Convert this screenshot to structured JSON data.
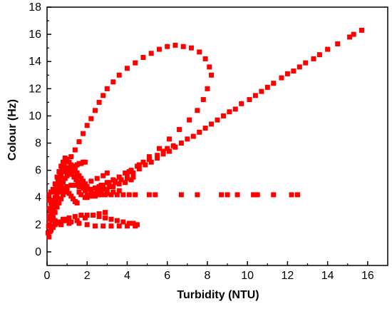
{
  "chart_data": {
    "type": "scatter",
    "xlabel": "Turbidity (NTU)",
    "ylabel": "Colour (Hz)",
    "xlim": [
      0,
      17
    ],
    "ylim": [
      -1,
      18
    ],
    "xticks": [
      0,
      2,
      4,
      6,
      8,
      10,
      12,
      14,
      16
    ],
    "yticks": [
      0,
      2,
      4,
      6,
      8,
      10,
      12,
      14,
      16,
      18
    ],
    "marker": "square",
    "color": "#ff0000",
    "grid": false,
    "legend": "none",
    "points": [
      [
        15.7,
        16.3
      ],
      [
        15.3,
        16.0
      ],
      [
        15.1,
        15.8
      ],
      [
        14.5,
        15.3
      ],
      [
        14.0,
        14.9
      ],
      [
        13.6,
        14.5
      ],
      [
        13.3,
        14.2
      ],
      [
        12.9,
        13.9
      ],
      [
        12.6,
        13.6
      ],
      [
        12.3,
        13.3
      ],
      [
        12.0,
        13.1
      ],
      [
        11.7,
        12.8
      ],
      [
        11.3,
        12.4
      ],
      [
        11.0,
        12.1
      ],
      [
        10.7,
        11.8
      ],
      [
        10.4,
        11.5
      ],
      [
        10.1,
        11.2
      ],
      [
        9.7,
        10.9
      ],
      [
        9.4,
        10.5
      ],
      [
        9.1,
        10.3
      ],
      [
        8.8,
        10.0
      ],
      [
        8.5,
        9.7
      ],
      [
        8.2,
        9.4
      ],
      [
        7.9,
        9.1
      ],
      [
        7.6,
        8.8
      ],
      [
        7.3,
        8.5
      ],
      [
        7.0,
        8.3
      ],
      [
        6.7,
        8.0
      ],
      [
        6.4,
        7.7
      ],
      [
        6.1,
        7.4
      ],
      [
        5.8,
        7.2
      ],
      [
        5.5,
        6.9
      ],
      [
        5.2,
        6.6
      ],
      [
        4.9,
        6.4
      ],
      [
        4.6,
        6.1
      ],
      [
        4.3,
        5.8
      ],
      [
        4.0,
        5.6
      ],
      [
        3.7,
        5.3
      ],
      [
        3.4,
        5.1
      ],
      [
        3.1,
        4.8
      ],
      [
        2.8,
        4.6
      ],
      [
        2.5,
        4.4
      ],
      [
        2.2,
        4.2
      ],
      [
        1.9,
        4.0
      ],
      [
        8.2,
        13.0
      ],
      [
        8.1,
        13.6
      ],
      [
        7.9,
        14.2
      ],
      [
        7.6,
        14.7
      ],
      [
        7.2,
        15.0
      ],
      [
        6.8,
        15.1
      ],
      [
        6.4,
        15.2
      ],
      [
        6.0,
        15.1
      ],
      [
        5.6,
        14.9
      ],
      [
        5.2,
        14.6
      ],
      [
        4.8,
        14.3
      ],
      [
        4.4,
        13.9
      ],
      [
        4.0,
        13.5
      ],
      [
        3.6,
        13.0
      ],
      [
        3.3,
        12.5
      ],
      [
        3.0,
        12.0
      ],
      [
        2.8,
        11.5
      ],
      [
        2.6,
        11.0
      ],
      [
        2.4,
        10.4
      ],
      [
        2.2,
        9.8
      ],
      [
        2.0,
        9.3
      ],
      [
        1.8,
        8.7
      ],
      [
        1.6,
        8.1
      ],
      [
        1.4,
        7.5
      ],
      [
        1.2,
        7.0
      ],
      [
        8.0,
        12.0
      ],
      [
        7.8,
        11.2
      ],
      [
        7.5,
        10.4
      ],
      [
        7.1,
        9.7
      ],
      [
        6.6,
        9.0
      ],
      [
        6.1,
        8.3
      ],
      [
        5.6,
        7.6
      ],
      [
        5.1,
        7.0
      ],
      [
        4.6,
        6.4
      ],
      [
        4.1,
        5.9
      ],
      [
        3.6,
        5.5
      ],
      [
        3.1,
        5.1
      ],
      [
        2.6,
        4.8
      ],
      [
        2.1,
        4.6
      ],
      [
        1.6,
        4.4
      ],
      [
        6.3,
        7.8
      ],
      [
        6.0,
        7.6
      ],
      [
        5.8,
        7.4
      ],
      [
        5.5,
        7.1
      ],
      [
        5.1,
        6.8
      ],
      [
        4.8,
        6.6
      ],
      [
        4.5,
        6.3
      ],
      [
        4.2,
        6.0
      ],
      [
        3.9,
        5.8
      ],
      [
        3.6,
        5.5
      ],
      [
        3.3,
        5.3
      ],
      [
        3.0,
        5.1
      ],
      [
        2.7,
        4.9
      ],
      [
        2.4,
        4.7
      ],
      [
        12.5,
        4.2
      ],
      [
        12.2,
        4.2
      ],
      [
        11.3,
        4.2
      ],
      [
        10.5,
        4.2
      ],
      [
        10.3,
        4.2
      ],
      [
        9.5,
        4.2
      ],
      [
        9.0,
        4.2
      ],
      [
        8.7,
        4.2
      ],
      [
        7.5,
        4.2
      ],
      [
        6.7,
        4.2
      ],
      [
        5.4,
        4.2
      ],
      [
        5.1,
        4.2
      ],
      [
        4.4,
        4.2
      ],
      [
        4.1,
        4.2
      ],
      [
        3.8,
        4.2
      ],
      [
        3.5,
        4.2
      ],
      [
        3.2,
        4.2
      ],
      [
        2.9,
        4.2
      ],
      [
        2.6,
        4.2
      ],
      [
        2.3,
        4.2
      ],
      [
        2.0,
        4.2
      ],
      [
        1.7,
        4.2
      ],
      [
        4.5,
        2.0
      ],
      [
        4.3,
        2.1
      ],
      [
        4.1,
        2.1
      ],
      [
        3.8,
        2.2
      ],
      [
        3.5,
        2.3
      ],
      [
        3.2,
        2.4
      ],
      [
        2.9,
        2.5
      ],
      [
        2.6,
        2.6
      ],
      [
        2.3,
        2.7
      ],
      [
        2.0,
        2.7
      ],
      [
        1.7,
        2.7
      ],
      [
        1.4,
        2.6
      ],
      [
        1.1,
        2.5
      ],
      [
        0.8,
        2.4
      ],
      [
        4.4,
        1.9
      ],
      [
        4.0,
        1.9
      ],
      [
        3.6,
        1.9
      ],
      [
        3.2,
        1.9
      ],
      [
        2.8,
        1.9
      ],
      [
        2.4,
        1.9
      ],
      [
        2.0,
        2.0
      ],
      [
        1.6,
        2.1
      ],
      [
        1.2,
        2.2
      ],
      [
        0.8,
        2.3
      ],
      [
        0.4,
        2.3
      ],
      [
        2.9,
        2.9
      ],
      [
        2.6,
        2.8
      ],
      [
        2.3,
        2.7
      ],
      [
        1.9,
        2.5
      ],
      [
        1.5,
        2.3
      ],
      [
        1.1,
        2.1
      ],
      [
        0.7,
        2.0
      ],
      [
        4.3,
        5.5
      ],
      [
        4.0,
        5.4
      ],
      [
        3.7,
        5.3
      ],
      [
        3.4,
        5.2
      ],
      [
        3.1,
        5.0
      ],
      [
        2.8,
        4.9
      ],
      [
        2.5,
        4.7
      ],
      [
        2.2,
        4.6
      ],
      [
        1.9,
        4.5
      ],
      [
        1.6,
        4.4
      ],
      [
        3.0,
        5.8
      ],
      [
        2.8,
        5.6
      ],
      [
        2.5,
        5.4
      ],
      [
        2.2,
        5.2
      ],
      [
        1.9,
        4.9
      ],
      [
        0.1,
        1.1
      ],
      [
        0.15,
        1.5
      ],
      [
        0.2,
        1.9
      ],
      [
        0.25,
        2.3
      ],
      [
        0.3,
        2.7
      ],
      [
        0.35,
        3.1
      ],
      [
        0.4,
        3.5
      ],
      [
        0.45,
        3.9
      ],
      [
        0.5,
        4.3
      ],
      [
        0.55,
        4.6
      ],
      [
        0.6,
        5.0
      ],
      [
        0.65,
        5.3
      ],
      [
        0.7,
        5.6
      ],
      [
        0.75,
        5.9
      ],
      [
        0.8,
        6.2
      ],
      [
        0.85,
        6.5
      ],
      [
        0.9,
        6.7
      ],
      [
        1.0,
        6.8
      ],
      [
        1.1,
        6.6
      ],
      [
        1.2,
        6.4
      ],
      [
        1.3,
        6.2
      ],
      [
        1.4,
        6.0
      ],
      [
        1.5,
        5.8
      ],
      [
        1.6,
        5.6
      ],
      [
        1.7,
        5.4
      ],
      [
        1.8,
        5.2
      ],
      [
        1.9,
        5.0
      ],
      [
        2.0,
        4.8
      ],
      [
        1.9,
        6.6
      ],
      [
        1.8,
        6.6
      ],
      [
        1.7,
        6.5
      ],
      [
        1.6,
        6.5
      ],
      [
        1.5,
        6.4
      ],
      [
        1.4,
        6.3
      ],
      [
        1.3,
        6.2
      ],
      [
        1.2,
        6.0
      ],
      [
        1.1,
        5.8
      ],
      [
        1.0,
        5.6
      ],
      [
        0.9,
        5.4
      ],
      [
        0.8,
        5.1
      ],
      [
        0.7,
        4.8
      ],
      [
        0.6,
        4.5
      ],
      [
        0.5,
        4.1
      ],
      [
        0.4,
        3.7
      ],
      [
        0.3,
        3.3
      ],
      [
        0.2,
        2.9
      ],
      [
        0.12,
        2.4
      ],
      [
        0.08,
        1.9
      ],
      [
        0.05,
        1.4
      ],
      [
        0.2,
        3.6
      ],
      [
        0.3,
        3.8
      ],
      [
        0.4,
        4.0
      ],
      [
        0.5,
        4.2
      ],
      [
        0.6,
        4.4
      ],
      [
        0.7,
        4.5
      ],
      [
        0.8,
        4.6
      ],
      [
        0.9,
        4.7
      ],
      [
        1.0,
        4.8
      ],
      [
        1.2,
        4.9
      ],
      [
        1.4,
        4.9
      ],
      [
        1.6,
        4.8
      ],
      [
        1.8,
        4.7
      ],
      [
        2.0,
        4.6
      ],
      [
        2.2,
        4.5
      ],
      [
        0.3,
        2.5
      ],
      [
        0.4,
        2.9
      ],
      [
        0.5,
        3.3
      ],
      [
        0.6,
        3.6
      ],
      [
        0.7,
        3.9
      ],
      [
        0.8,
        4.2
      ],
      [
        0.9,
        4.4
      ],
      [
        1.0,
        4.5
      ],
      [
        1.1,
        4.3
      ],
      [
        1.2,
        4.1
      ],
      [
        1.3,
        3.9
      ],
      [
        1.4,
        3.7
      ],
      [
        1.5,
        3.6
      ],
      [
        0.2,
        1.6
      ],
      [
        0.3,
        1.8
      ],
      [
        0.4,
        2.0
      ],
      [
        0.5,
        2.1
      ],
      [
        0.6,
        2.2
      ],
      [
        0.7,
        2.2
      ],
      [
        0.8,
        2.3
      ],
      [
        0.9,
        2.3
      ],
      [
        1.0,
        2.4
      ],
      [
        0.15,
        3.0
      ],
      [
        0.25,
        3.4
      ],
      [
        0.35,
        4.4
      ],
      [
        0.45,
        4.8
      ],
      [
        0.55,
        5.2
      ],
      [
        0.65,
        5.7
      ],
      [
        0.75,
        6.1
      ],
      [
        0.85,
        6.0
      ],
      [
        0.95,
        5.9
      ],
      [
        1.05,
        6.2
      ],
      [
        1.15,
        6.1
      ],
      [
        1.25,
        5.7
      ],
      [
        1.35,
        5.5
      ],
      [
        1.45,
        5.3
      ],
      [
        1.55,
        5.1
      ],
      [
        1.65,
        4.9
      ],
      [
        1.75,
        4.9
      ],
      [
        1.85,
        4.8
      ],
      [
        0.1,
        2.0
      ],
      [
        0.1,
        2.6
      ],
      [
        0.1,
        3.2
      ],
      [
        0.1,
        3.8
      ],
      [
        0.1,
        4.2
      ],
      [
        0.2,
        4.4
      ],
      [
        0.3,
        4.6
      ],
      [
        0.4,
        5.0
      ],
      [
        0.5,
        5.5
      ],
      [
        0.6,
        5.9
      ],
      [
        0.7,
        6.3
      ],
      [
        0.8,
        6.6
      ],
      [
        0.9,
        6.9
      ],
      [
        2.4,
        4.3
      ],
      [
        2.7,
        4.5
      ],
      [
        3.0,
        4.6
      ],
      [
        3.3,
        4.8
      ],
      [
        3.6,
        5.0
      ],
      [
        3.9,
        5.1
      ],
      [
        4.2,
        5.3
      ],
      [
        2.0,
        4.0
      ],
      [
        2.2,
        4.1
      ],
      [
        2.4,
        4.1
      ],
      [
        2.6,
        4.2
      ],
      [
        2.8,
        4.2
      ],
      [
        3.0,
        4.3
      ],
      [
        3.3,
        4.4
      ],
      [
        3.6,
        4.5
      ]
    ]
  }
}
